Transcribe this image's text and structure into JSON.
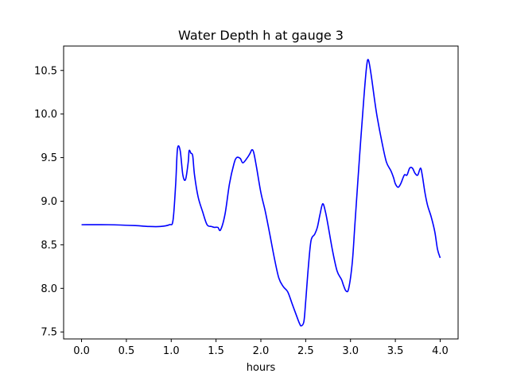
{
  "chart_data": {
    "type": "line",
    "title": "Water Depth h at gauge 3",
    "xlabel": "hours",
    "ylabel": "",
    "xlim": [
      -0.2,
      4.2
    ],
    "ylim": [
      7.42,
      10.78
    ],
    "x_ticks": [
      "0.0",
      "0.5",
      "1.0",
      "1.5",
      "2.0",
      "2.5",
      "3.0",
      "3.5",
      "4.0"
    ],
    "y_ticks": [
      "7.5",
      "8.0",
      "8.5",
      "9.0",
      "9.5",
      "10.0",
      "10.5"
    ],
    "grid": false,
    "legend": "none",
    "series": [
      {
        "color": "#0000ff",
        "x": [
          0.0,
          0.3,
          0.6,
          0.75,
          0.88,
          0.98,
          1.02,
          1.05,
          1.07,
          1.1,
          1.13,
          1.16,
          1.19,
          1.2,
          1.22,
          1.24,
          1.26,
          1.3,
          1.35,
          1.4,
          1.45,
          1.48,
          1.52,
          1.55,
          1.6,
          1.65,
          1.7,
          1.73,
          1.77,
          1.8,
          1.85,
          1.88,
          1.9,
          1.92,
          1.95,
          2.0,
          2.05,
          2.1,
          2.15,
          2.2,
          2.25,
          2.3,
          2.35,
          2.4,
          2.43,
          2.45,
          2.48,
          2.5,
          2.53,
          2.56,
          2.6,
          2.63,
          2.66,
          2.69,
          2.72,
          2.75,
          2.8,
          2.85,
          2.9,
          2.92,
          2.95,
          2.98,
          3.02,
          3.05,
          3.1,
          3.15,
          3.18,
          3.2,
          3.23,
          3.27,
          3.3,
          3.35,
          3.4,
          3.45,
          3.48,
          3.5,
          3.53,
          3.56,
          3.6,
          3.63,
          3.66,
          3.69,
          3.72,
          3.75,
          3.78,
          3.8,
          3.83,
          3.86,
          3.9,
          3.94,
          3.97,
          4.0
        ],
        "y": [
          8.73,
          8.73,
          8.72,
          8.71,
          8.71,
          8.73,
          8.78,
          9.2,
          9.6,
          9.58,
          9.3,
          9.25,
          9.45,
          9.58,
          9.55,
          9.52,
          9.3,
          9.05,
          8.88,
          8.73,
          8.71,
          8.7,
          8.7,
          8.67,
          8.85,
          9.2,
          9.43,
          9.5,
          9.49,
          9.44,
          9.5,
          9.55,
          9.59,
          9.56,
          9.4,
          9.1,
          8.88,
          8.62,
          8.35,
          8.12,
          8.02,
          7.96,
          7.82,
          7.68,
          7.6,
          7.57,
          7.62,
          7.85,
          8.25,
          8.55,
          8.62,
          8.7,
          8.85,
          8.97,
          8.88,
          8.72,
          8.43,
          8.2,
          8.1,
          8.04,
          7.97,
          8.0,
          8.3,
          8.75,
          9.5,
          10.2,
          10.55,
          10.62,
          10.45,
          10.15,
          9.95,
          9.68,
          9.45,
          9.35,
          9.27,
          9.2,
          9.16,
          9.2,
          9.3,
          9.3,
          9.38,
          9.38,
          9.32,
          9.3,
          9.38,
          9.3,
          9.1,
          8.95,
          8.82,
          8.65,
          8.45,
          8.35
        ]
      }
    ]
  }
}
